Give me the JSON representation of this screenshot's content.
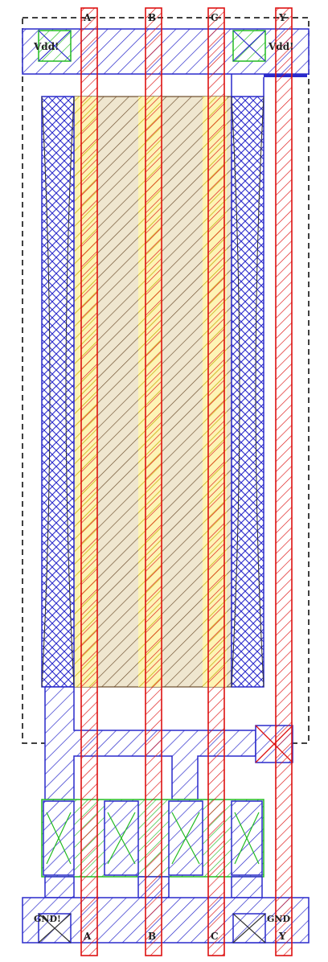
{
  "pins": {
    "top": [
      "A",
      "B",
      "C",
      "Y"
    ],
    "bottom": [
      "A",
      "B",
      "C",
      "Y"
    ]
  },
  "rails": {
    "vdd_left": "Vdd!",
    "vdd_right": "Vdd!",
    "gnd_left": "GND!",
    "gnd_right": "GND"
  },
  "colors": {
    "metal": "#2222bb",
    "poly": "#dd1111",
    "diffusion": "#22bb22",
    "nwell_fill": "#d8c49a",
    "yellow": "#f0d800",
    "border": "#000000"
  }
}
